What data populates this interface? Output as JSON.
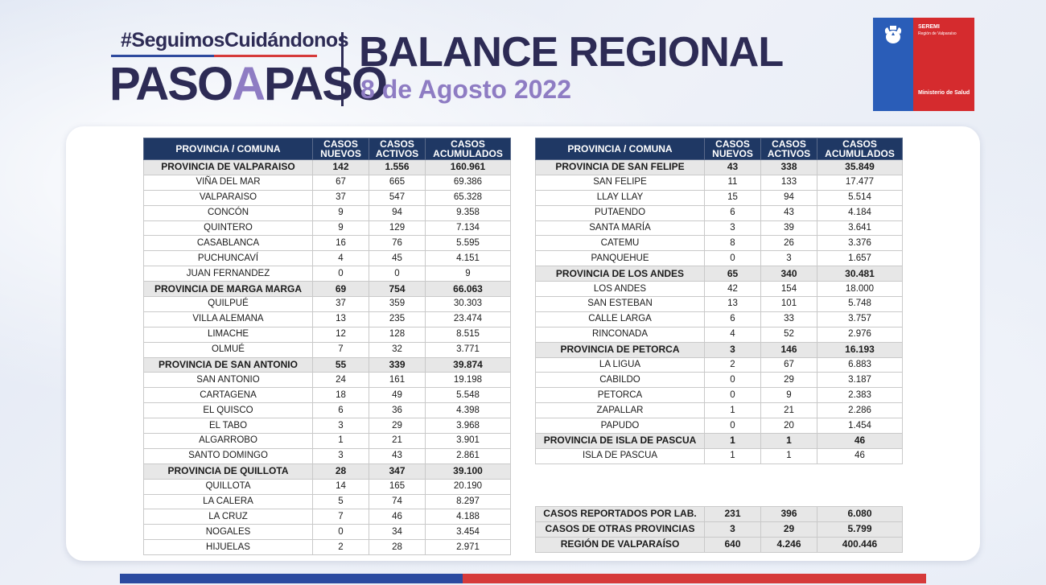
{
  "header": {
    "hashtag": "#SeguimosCuidándonos",
    "brand_paso1": "PASO",
    "brand_a": "A",
    "brand_paso2": "PASO",
    "title": "BALANCE REGIONAL",
    "date": "8 de Agosto 2022"
  },
  "logo": {
    "seremi": "SEREMI",
    "region": "Región de Valparaíso",
    "ministry": "Ministerio de Salud"
  },
  "columns": {
    "name": "PROVINCIA / COMUNA",
    "nuevos_1": "CASOS",
    "nuevos_2": "NUEVOS",
    "activos_1": "CASOS",
    "activos_2": "ACTIVOS",
    "acum_1": "CASOS",
    "acum_2": "ACUMULADOS"
  },
  "left_table": [
    {
      "name": "PROVINCIA DE VALPARAISO",
      "nuevos": "142",
      "activos": "1.556",
      "acumulados": "160.961",
      "province": true
    },
    {
      "name": "VIÑA DEL MAR",
      "nuevos": "67",
      "activos": "665",
      "acumulados": "69.386"
    },
    {
      "name": "VALPARAISO",
      "nuevos": "37",
      "activos": "547",
      "acumulados": "65.328"
    },
    {
      "name": "CONCÓN",
      "nuevos": "9",
      "activos": "94",
      "acumulados": "9.358"
    },
    {
      "name": "QUINTERO",
      "nuevos": "9",
      "activos": "129",
      "acumulados": "7.134"
    },
    {
      "name": "CASABLANCA",
      "nuevos": "16",
      "activos": "76",
      "acumulados": "5.595"
    },
    {
      "name": "PUCHUNCAVÍ",
      "nuevos": "4",
      "activos": "45",
      "acumulados": "4.151"
    },
    {
      "name": "JUAN FERNANDEZ",
      "nuevos": "0",
      "activos": "0",
      "acumulados": "9"
    },
    {
      "name": "PROVINCIA DE MARGA MARGA",
      "nuevos": "69",
      "activos": "754",
      "acumulados": "66.063",
      "province": true
    },
    {
      "name": "QUILPUÉ",
      "nuevos": "37",
      "activos": "359",
      "acumulados": "30.303"
    },
    {
      "name": "VILLA ALEMANA",
      "nuevos": "13",
      "activos": "235",
      "acumulados": "23.474"
    },
    {
      "name": "LIMACHE",
      "nuevos": "12",
      "activos": "128",
      "acumulados": "8.515"
    },
    {
      "name": "OLMUÉ",
      "nuevos": "7",
      "activos": "32",
      "acumulados": "3.771"
    },
    {
      "name": "PROVINCIA DE SAN ANTONIO",
      "nuevos": "55",
      "activos": "339",
      "acumulados": "39.874",
      "province": true
    },
    {
      "name": "SAN ANTONIO",
      "nuevos": "24",
      "activos": "161",
      "acumulados": "19.198"
    },
    {
      "name": "CARTAGENA",
      "nuevos": "18",
      "activos": "49",
      "acumulados": "5.548"
    },
    {
      "name": "EL QUISCO",
      "nuevos": "6",
      "activos": "36",
      "acumulados": "4.398"
    },
    {
      "name": "EL TABO",
      "nuevos": "3",
      "activos": "29",
      "acumulados": "3.968"
    },
    {
      "name": "ALGARROBO",
      "nuevos": "1",
      "activos": "21",
      "acumulados": "3.901"
    },
    {
      "name": "SANTO DOMINGO",
      "nuevos": "3",
      "activos": "43",
      "acumulados": "2.861"
    },
    {
      "name": "PROVINCIA DE QUILLOTA",
      "nuevos": "28",
      "activos": "347",
      "acumulados": "39.100",
      "province": true
    },
    {
      "name": "QUILLOTA",
      "nuevos": "14",
      "activos": "165",
      "acumulados": "20.190"
    },
    {
      "name": "LA CALERA",
      "nuevos": "5",
      "activos": "74",
      "acumulados": "8.297"
    },
    {
      "name": "LA CRUZ",
      "nuevos": "7",
      "activos": "46",
      "acumulados": "4.188"
    },
    {
      "name": "NOGALES",
      "nuevos": "0",
      "activos": "34",
      "acumulados": "3.454"
    },
    {
      "name": "HIJUELAS",
      "nuevos": "2",
      "activos": "28",
      "acumulados": "2.971"
    }
  ],
  "right_table": [
    {
      "name": "PROVINCIA DE SAN FELIPE",
      "nuevos": "43",
      "activos": "338",
      "acumulados": "35.849",
      "province": true
    },
    {
      "name": "SAN FELIPE",
      "nuevos": "11",
      "activos": "133",
      "acumulados": "17.477"
    },
    {
      "name": "LLAY LLAY",
      "nuevos": "15",
      "activos": "94",
      "acumulados": "5.514"
    },
    {
      "name": "PUTAENDO",
      "nuevos": "6",
      "activos": "43",
      "acumulados": "4.184"
    },
    {
      "name": "SANTA MARÍA",
      "nuevos": "3",
      "activos": "39",
      "acumulados": "3.641"
    },
    {
      "name": "CATEMU",
      "nuevos": "8",
      "activos": "26",
      "acumulados": "3.376"
    },
    {
      "name": "PANQUEHUE",
      "nuevos": "0",
      "activos": "3",
      "acumulados": "1.657"
    },
    {
      "name": "PROVINCIA DE LOS ANDES",
      "nuevos": "65",
      "activos": "340",
      "acumulados": "30.481",
      "province": true
    },
    {
      "name": "LOS ANDES",
      "nuevos": "42",
      "activos": "154",
      "acumulados": "18.000"
    },
    {
      "name": "SAN ESTEBAN",
      "nuevos": "13",
      "activos": "101",
      "acumulados": "5.748"
    },
    {
      "name": "CALLE LARGA",
      "nuevos": "6",
      "activos": "33",
      "acumulados": "3.757"
    },
    {
      "name": "RINCONADA",
      "nuevos": "4",
      "activos": "52",
      "acumulados": "2.976"
    },
    {
      "name": "PROVINCIA DE PETORCA",
      "nuevos": "3",
      "activos": "146",
      "acumulados": "16.193",
      "province": true
    },
    {
      "name": "LA LIGUA",
      "nuevos": "2",
      "activos": "67",
      "acumulados": "6.883"
    },
    {
      "name": "CABILDO",
      "nuevos": "0",
      "activos": "29",
      "acumulados": "3.187"
    },
    {
      "name": "PETORCA",
      "nuevos": "0",
      "activos": "9",
      "acumulados": "2.383"
    },
    {
      "name": "ZAPALLAR",
      "nuevos": "1",
      "activos": "21",
      "acumulados": "2.286"
    },
    {
      "name": "PAPUDO",
      "nuevos": "0",
      "activos": "20",
      "acumulados": "1.454"
    },
    {
      "name": "PROVINCIA DE ISLA DE PASCUA",
      "nuevos": "1",
      "activos": "1",
      "acumulados": "46",
      "province": true
    },
    {
      "name": "ISLA DE PASCUA",
      "nuevos": "1",
      "activos": "1",
      "acumulados": "46"
    }
  ],
  "summary": [
    {
      "name": "CASOS REPORTADOS POR LAB.",
      "nuevos": "231",
      "activos": "396",
      "acumulados": "6.080"
    },
    {
      "name": "CASOS DE OTRAS PROVINCIAS",
      "nuevos": "3",
      "activos": "29",
      "acumulados": "5.799"
    },
    {
      "name": "REGIÓN DE VALPARAÍSO",
      "nuevos": "640",
      "activos": "4.246",
      "acumulados": "400.446"
    }
  ],
  "colors": {
    "navy": "#1f3864",
    "brand_dark": "#2d2b55",
    "brand_purple": "#8e7cc3",
    "logo_blue": "#2a5db8",
    "logo_red": "#d52b2e"
  }
}
